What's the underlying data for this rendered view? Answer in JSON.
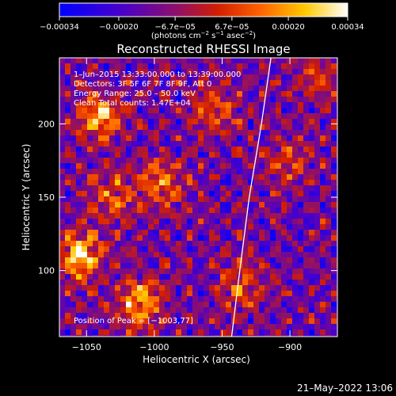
{
  "chart_data": {
    "type": "heatmap",
    "title": "Reconstructed RHESSI Image",
    "xlabel": "Heliocentric X (arcsec)",
    "ylabel": "Heliocentric Y (arcsec)",
    "xlim": [
      -1070,
      -865
    ],
    "ylim": [
      55,
      245
    ],
    "x_ticks": [
      -1050,
      -1000,
      -950,
      -900
    ],
    "x_tick_labels": [
      "−1050",
      "−1000",
      "−950",
      "−900"
    ],
    "y_ticks": [
      100,
      150,
      200
    ],
    "y_tick_labels": [
      "100",
      "150",
      "200"
    ],
    "colormap": "IDL 3 (red temperature): blue → purple → red → orange → yellow → white",
    "colorbar": {
      "range": [
        -0.00034,
        0.00034
      ],
      "ticks": [
        -0.00034,
        -0.0002,
        -6.7e-05,
        6.7e-05,
        0.0002,
        0.00034
      ],
      "tick_labels": [
        "−0.00034",
        "−0.00020",
        "−6.7e−05",
        "6.7e−05",
        "0.00020",
        "0.00034"
      ],
      "units_prefix": "(photons cm",
      "units_sup1": "−2",
      "units_mid": " s",
      "units_sup2": "−1",
      "units_mid2": " asec",
      "units_sup3": "−2",
      "units_suffix": ")"
    },
    "annotations": [
      "1–Jun–2015 13:33:00.000 to 13:39:00.000",
      "Detectors: 3F 5F 6F 7F 8F 9F, Att 0",
      "Energy Range: 25.0 – 50.0 keV",
      "Clean    Total counts: 1.47E+04"
    ],
    "peak_label": "Position of Peak = [−1003,77]",
    "peak_position": [
      -1003,
      77
    ],
    "limb_curve": {
      "color": "#ffffff",
      "points": [
        [
          -943,
          55
        ],
        [
          -937,
          100
        ],
        [
          -930,
          150
        ],
        [
          -921,
          200
        ],
        [
          -914,
          245
        ]
      ]
    },
    "bright_sources": [
      {
        "x": -1055,
        "y": 110,
        "strength": 1.0
      },
      {
        "x": -1040,
        "y": 205,
        "strength": 0.9
      },
      {
        "x": -1010,
        "y": 78,
        "strength": 0.85
      },
      {
        "x": -995,
        "y": 160,
        "strength": 0.7
      },
      {
        "x": -1030,
        "y": 150,
        "strength": 0.6
      },
      {
        "x": -955,
        "y": 210,
        "strength": 0.55
      },
      {
        "x": -935,
        "y": 90,
        "strength": 0.55
      },
      {
        "x": -900,
        "y": 175,
        "strength": 0.45
      },
      {
        "x": -880,
        "y": 230,
        "strength": 0.4
      }
    ]
  },
  "timestamp": "21–May–2022 13:06"
}
